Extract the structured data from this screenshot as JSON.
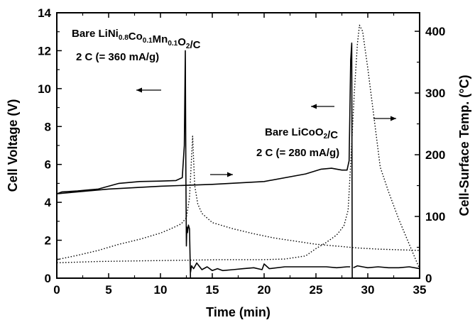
{
  "chart_data": {
    "type": "line",
    "xlabel": "Time (min)",
    "ylabel_left": "Cell Voltage (V)",
    "ylabel_right": "Cell-Surface Temp. (°C)",
    "xlim": [
      0,
      35
    ],
    "ylim_left": [
      0,
      14
    ],
    "ylim_right": [
      0,
      430
    ],
    "x_ticks": [
      "0",
      "5",
      "10",
      "15",
      "20",
      "25",
      "30",
      "35"
    ],
    "y_left_ticks": [
      "0",
      "2",
      "4",
      "6",
      "8",
      "10",
      "12",
      "14"
    ],
    "y_right_ticks": [
      "0",
      "100",
      "200",
      "300",
      "400"
    ],
    "annotations": {
      "ncm_label": "Bare LiNi0.8Co0.1Mn0.1O2/C",
      "ncm_rate": "2 C (= 360 mA/g)",
      "lco_label": "Bare LiCoO2/C",
      "lco_rate": "2 C (= 280 mA/g)"
    },
    "series": [
      {
        "axis": "left",
        "style": "solid",
        "x": [
          0,
          0.5,
          2,
          4,
          5,
          6,
          8,
          10,
          11.5,
          12.1,
          12.3,
          12.4,
          12.45,
          12.5,
          12.55,
          12.6,
          12.7,
          12.8,
          12.9
        ],
        "y": [
          4.45,
          4.55,
          4.6,
          4.7,
          4.85,
          5.0,
          5.1,
          5.12,
          5.15,
          5.3,
          7.0,
          12.0,
          5.5,
          1.7,
          2.7,
          2.4,
          2.8,
          2.6,
          0.0
        ]
      },
      {
        "axis": "left",
        "style": "solid",
        "x": [
          12.9,
          13,
          13.2,
          13.5,
          14,
          14.5,
          15,
          15.5,
          16,
          17,
          18,
          19,
          19.8,
          20,
          20.5,
          22,
          24,
          26,
          27,
          28,
          28.3
        ],
        "y": [
          0.3,
          0.65,
          0.5,
          0.8,
          0.45,
          0.6,
          0.4,
          0.5,
          0.4,
          0.45,
          0.5,
          0.55,
          0.45,
          0.75,
          0.5,
          0.6,
          0.6,
          0.6,
          0.55,
          0.6,
          0.6
        ]
      },
      {
        "axis": "left",
        "style": "solid",
        "x": [
          0,
          5,
          10,
          15,
          20,
          24,
          25.5,
          26.5,
          27.5,
          28.0,
          28.2,
          28.35,
          28.45,
          28.5
        ],
        "y": [
          4.45,
          4.7,
          4.85,
          4.95,
          5.1,
          5.5,
          5.75,
          5.8,
          5.7,
          5.7,
          6.2,
          11.5,
          12.4,
          0.0
        ]
      },
      {
        "axis": "left",
        "style": "solid",
        "x": [
          28.6,
          29,
          29.5,
          30,
          31,
          32,
          33,
          34,
          35
        ],
        "y": [
          0.55,
          0.65,
          0.6,
          0.55,
          0.6,
          0.55,
          0.55,
          0.6,
          0.5
        ]
      },
      {
        "axis": "right",
        "style": "dotted",
        "x": [
          0,
          2,
          4,
          6,
          8,
          10,
          11,
          12,
          12.5,
          12.8,
          13.1,
          13.3,
          13.6,
          14,
          15,
          17,
          19,
          21,
          23,
          25,
          27,
          29,
          31,
          33,
          35
        ],
        "y": [
          30,
          37,
          45,
          55,
          63,
          73,
          80,
          88,
          98,
          130,
          230,
          150,
          120,
          105,
          90,
          80,
          72,
          65,
          60,
          55,
          52,
          49,
          47,
          46,
          45
        ]
      },
      {
        "axis": "right",
        "style": "dotted",
        "x": [
          0,
          4,
          8,
          12,
          16,
          20,
          22,
          24,
          25,
          26,
          27,
          27.7,
          28.1,
          28.4,
          28.7,
          29,
          29.2,
          29.5,
          30,
          30.6,
          31.2,
          32,
          33,
          34,
          35
        ],
        "y": [
          25,
          27,
          28,
          29,
          30,
          30,
          31,
          36,
          48,
          58,
          70,
          85,
          110,
          200,
          300,
          380,
          410,
          400,
          340,
          260,
          180,
          140,
          95,
          55,
          15
        ]
      }
    ]
  }
}
